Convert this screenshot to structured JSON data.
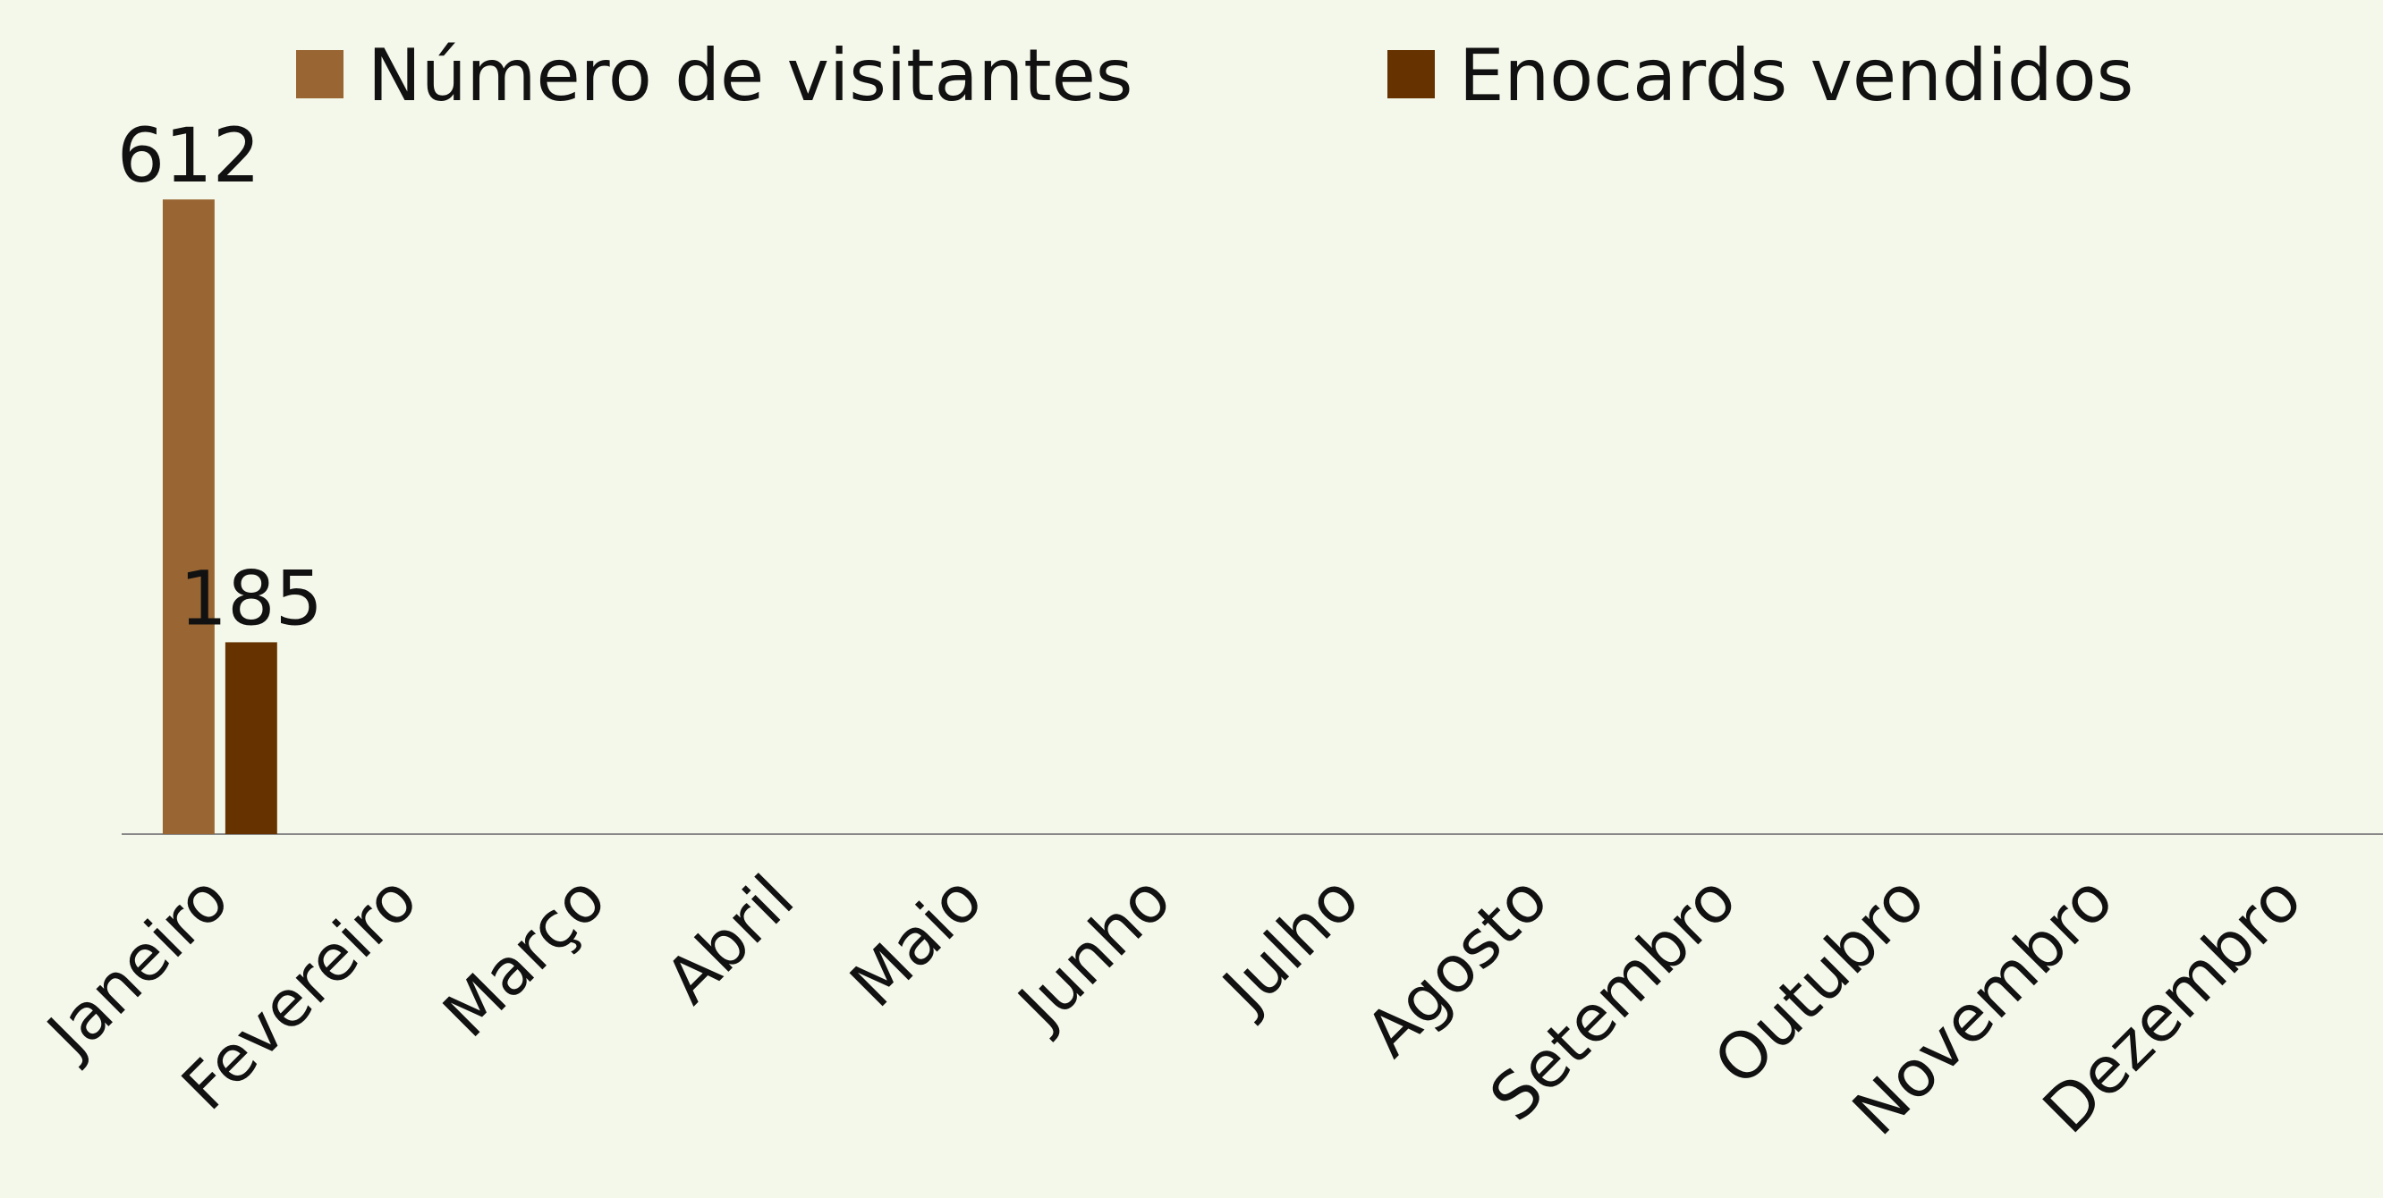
{
  "chart_data": {
    "type": "bar",
    "categories": [
      "Janeiro",
      "Fevereiro",
      "Março",
      "Abril",
      "Maio",
      "Junho",
      "Julho",
      "Agosto",
      "Setembro",
      "Outubro",
      "Novembro",
      "Dezembro"
    ],
    "series": [
      {
        "name": "Número de visitantes",
        "color": "#996633",
        "values": [
          612,
          null,
          null,
          null,
          null,
          null,
          null,
          null,
          null,
          null,
          null,
          null
        ]
      },
      {
        "name": "Enocards vendidos",
        "color": "#663300",
        "values": [
          185,
          null,
          null,
          null,
          null,
          null,
          null,
          null,
          null,
          null,
          null,
          null
        ]
      }
    ],
    "ylim": [
      0,
      700
    ],
    "legend": "top",
    "data_labels": true
  }
}
